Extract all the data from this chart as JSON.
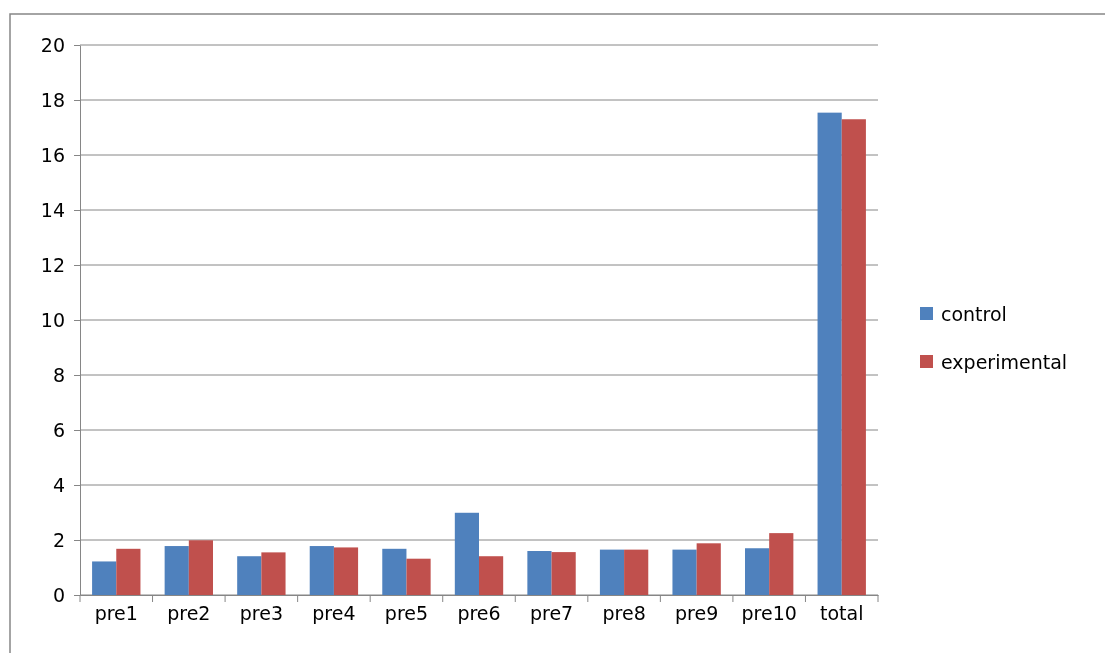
{
  "chart_data": {
    "type": "bar",
    "categories": [
      "pre1",
      "pre2",
      "pre3",
      "pre4",
      "pre5",
      "pre6",
      "pre7",
      "pre8",
      "pre9",
      "pre10",
      "total"
    ],
    "series": [
      {
        "name": "control",
        "color": "#4f81bd",
        "values": [
          1.22,
          1.78,
          1.41,
          1.78,
          1.68,
          2.99,
          1.6,
          1.65,
          1.65,
          1.7,
          17.54
        ]
      },
      {
        "name": "experimental",
        "color": "#c0504d",
        "values": [
          1.68,
          1.99,
          1.55,
          1.73,
          1.32,
          1.41,
          1.56,
          1.65,
          1.88,
          2.25,
          17.3
        ]
      }
    ],
    "ylim": [
      0,
      20
    ],
    "yticks": [
      0,
      2,
      4,
      6,
      8,
      10,
      12,
      14,
      16,
      18,
      20
    ],
    "grid": "y",
    "legend": "right"
  }
}
